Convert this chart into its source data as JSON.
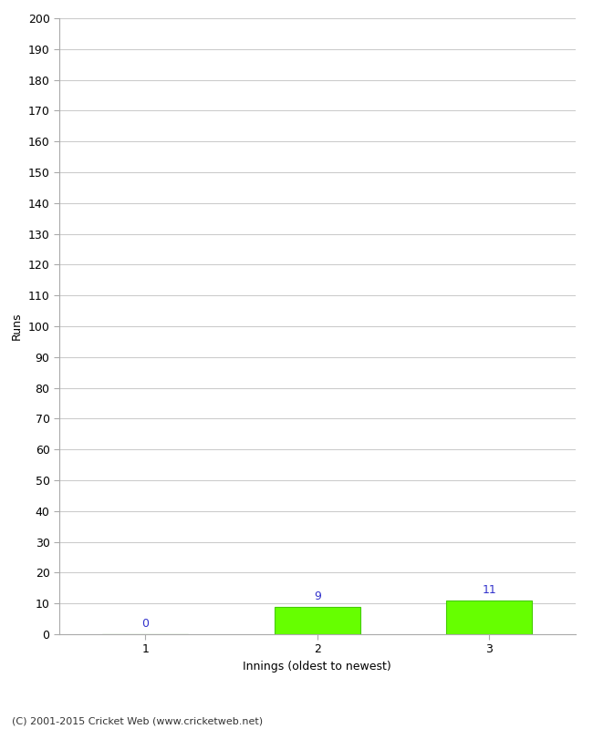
{
  "categories": [
    1,
    2,
    3
  ],
  "values": [
    0,
    9,
    11
  ],
  "bar_color": "#66ff00",
  "bar_edge_color": "#44cc00",
  "value_color": "#3333cc",
  "ylabel": "Runs",
  "xlabel": "Innings (oldest to newest)",
  "ylim": [
    0,
    200
  ],
  "yticks": [
    0,
    10,
    20,
    30,
    40,
    50,
    60,
    70,
    80,
    90,
    100,
    110,
    120,
    130,
    140,
    150,
    160,
    170,
    180,
    190,
    200
  ],
  "xtick_labels": [
    "1",
    "2",
    "3"
  ],
  "footer": "(C) 2001-2015 Cricket Web (www.cricketweb.net)",
  "background_color": "#ffffff",
  "grid_color": "#cccccc",
  "value_fontsize": 9,
  "label_fontsize": 9,
  "tick_fontsize": 9,
  "bar_width": 0.5,
  "xlim": [
    0.5,
    3.5
  ]
}
